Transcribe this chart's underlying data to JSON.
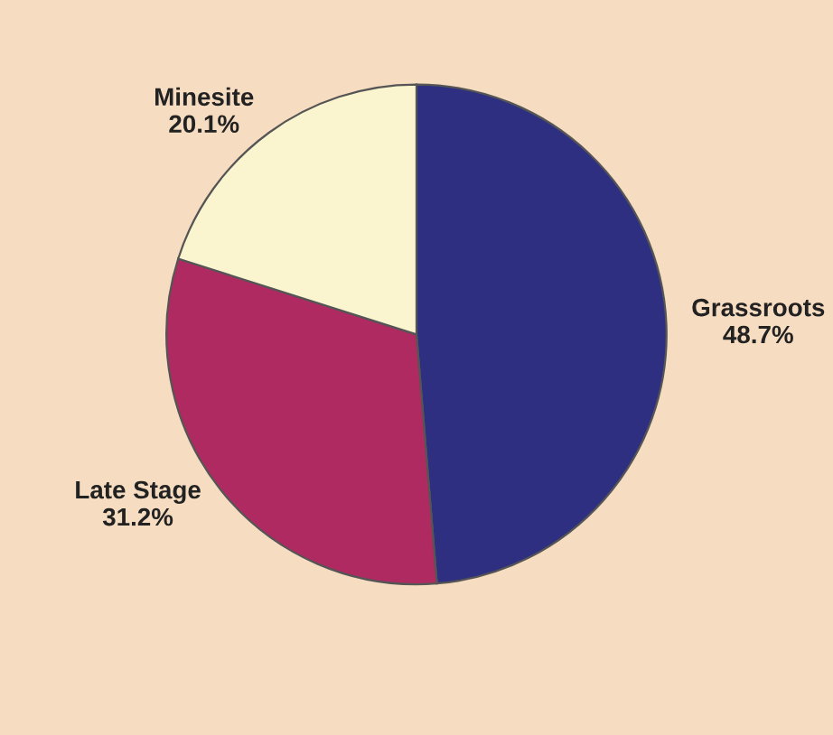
{
  "chart_data": {
    "type": "pie",
    "categories": [
      "Grassroots",
      "Late Stage",
      "Minesite"
    ],
    "values": [
      48.7,
      31.2,
      20.1
    ],
    "value_labels": [
      "48.7%",
      "31.2%",
      "20.1%"
    ],
    "colors": [
      "#2e2f80",
      "#b02a62",
      "#fbf5cf"
    ]
  }
}
